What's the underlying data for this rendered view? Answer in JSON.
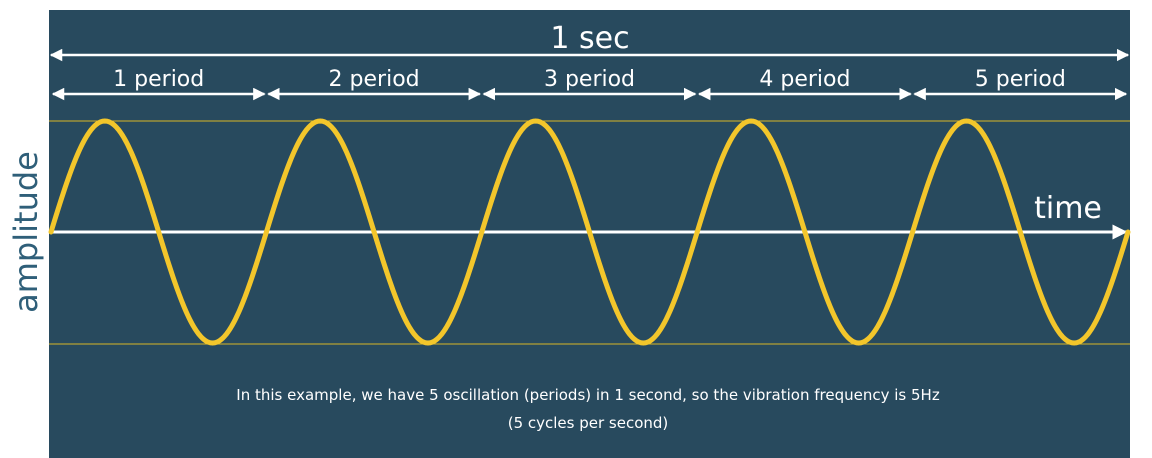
{
  "labels": {
    "total": "1 sec",
    "axis_x": "time",
    "axis_y": "amplitude"
  },
  "periods": [
    "1 period",
    "2 period",
    "3 period",
    "4 period",
    "5 period"
  ],
  "caption": {
    "line1": "In this example, we have 5 oscillation (periods) in 1 second, so the vibration frequency is 5Hz",
    "line2": "(5 cycles per second)"
  },
  "wave": {
    "cycles": 5,
    "duration_seconds": 1,
    "frequency_hz": 5
  },
  "colors": {
    "panel": "#284a5e",
    "wave": "#f3c62b",
    "guide": "#d9b626",
    "axis": "#ffffff",
    "amplitude_label": "#2f5f79"
  }
}
